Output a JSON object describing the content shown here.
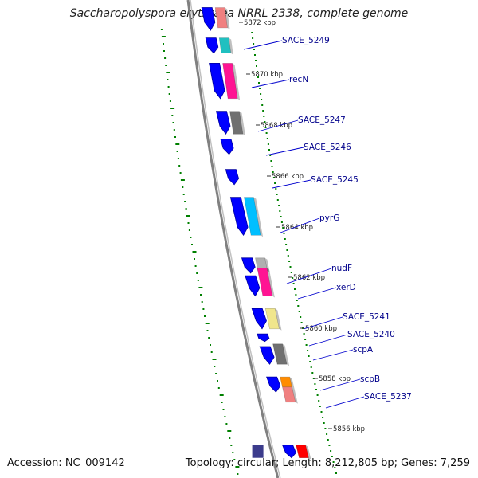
{
  "title": "Saccharopolyspora erythraea NRRL 2338, complete genome",
  "footer": {
    "accession": "Accession: NC_009142",
    "summary": "Topology: circular; Length: 8,212,805 bp; Genes: 7,259"
  },
  "colors": {
    "backbone": "#808080",
    "forward_gene": "#0000ff",
    "label": "#00008b",
    "gc_tick": "#008000"
  },
  "chart_data": {
    "type": "genome-map",
    "ticks": [
      "5872 kbp",
      "5870 kbp",
      "5868 kbp",
      "5866 kbp",
      "5864 kbp",
      "5862 kbp",
      "5860 kbp",
      "5858 kbp",
      "5856 kbp"
    ],
    "gene_labels": [
      "SACE_5249",
      "recN",
      "SACE_5247",
      "SACE_5246",
      "SACE_5245",
      "pyrG",
      "nudF",
      "xerD",
      "SACE_5241",
      "SACE_5240",
      "scpA",
      "scpB",
      "SACE_5237"
    ],
    "genes": [
      {
        "strand": "+",
        "start": 5872.6,
        "end": 5871.7
      },
      {
        "strand": "+",
        "start": 5871.4,
        "end": 5870.8
      },
      {
        "strand": "+",
        "start": 5870.4,
        "end": 5869.0
      },
      {
        "strand": "+",
        "start": 5868.5,
        "end": 5867.6
      },
      {
        "strand": "+",
        "start": 5867.4,
        "end": 5866.8
      },
      {
        "strand": "+",
        "start": 5866.2,
        "end": 5865.6
      },
      {
        "strand": "+",
        "start": 5865.1,
        "end": 5863.6
      },
      {
        "strand": "+",
        "start": 5862.7,
        "end": 5862.1
      },
      {
        "strand": "+",
        "start": 5862.0,
        "end": 5861.2
      },
      {
        "strand": "+",
        "start": 5860.7,
        "end": 5859.9
      },
      {
        "strand": "+",
        "start": 5859.7,
        "end": 5859.4
      },
      {
        "strand": "+",
        "start": 5859.2,
        "end": 5858.5
      },
      {
        "strand": "+",
        "start": 5858.0,
        "end": 5857.4
      },
      {
        "strand": "+",
        "start": 5855.3,
        "end": 5854.8
      }
    ],
    "cogs": [
      {
        "color": "#f08080",
        "start": 5872.6,
        "end": 5871.8
      },
      {
        "color": "#20c0c0",
        "start": 5871.4,
        "end": 5870.8
      },
      {
        "color": "#ff1493",
        "start": 5870.4,
        "end": 5869.0
      },
      {
        "color": "#707070",
        "start": 5868.5,
        "end": 5867.6
      },
      {
        "color": "#00bfff",
        "start": 5865.1,
        "end": 5863.6
      },
      {
        "color": "#b0b0b0",
        "start": 5862.7,
        "end": 5862.2
      },
      {
        "color": "#ff1493",
        "start": 5862.3,
        "end": 5861.2
      },
      {
        "color": "#f0e68c",
        "start": 5860.7,
        "end": 5859.9
      },
      {
        "color": "#707070",
        "start": 5859.3,
        "end": 5858.5
      },
      {
        "color": "#ff8c00",
        "start": 5858.0,
        "end": 5857.6
      },
      {
        "color": "#f08080",
        "start": 5857.6,
        "end": 5857.0
      },
      {
        "color": "#ff0000",
        "start": 5855.3,
        "end": 5854.8
      }
    ],
    "reverse_genes": [
      {
        "start": 5855.3,
        "end": 5854.8
      }
    ]
  }
}
